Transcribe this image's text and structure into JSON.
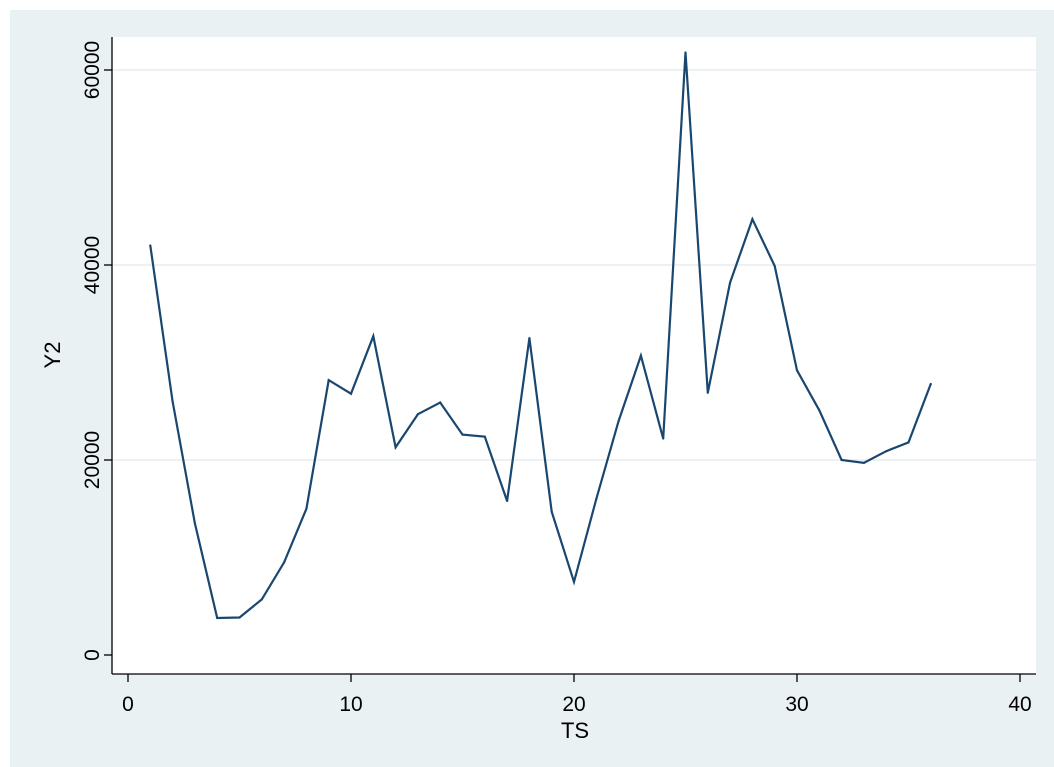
{
  "chart_data": {
    "type": "line",
    "xlabel": "TS",
    "ylabel": "Y2",
    "xlim": [
      0,
      40
    ],
    "ylim": [
      0,
      60000
    ],
    "xticks": [
      0,
      10,
      20,
      30,
      40
    ],
    "yticks": [
      0,
      20000,
      40000,
      60000
    ],
    "xtick_labels": [
      "0",
      "10",
      "20",
      "30",
      "40"
    ],
    "ytick_labels": [
      "0",
      "20000",
      "40000",
      "60000"
    ],
    "grid": "horizontal",
    "background": "#eaf1f3",
    "plot_background": "#ffffff",
    "line_color": "#1a476f",
    "series": [
      {
        "x": [
          1,
          2,
          3,
          4,
          5,
          6,
          7,
          8,
          9,
          10,
          11,
          12,
          13,
          14,
          15,
          16,
          17,
          18,
          19,
          20,
          21,
          22,
          23,
          24,
          25,
          26,
          27,
          28,
          29,
          30,
          31,
          32,
          33,
          34,
          35,
          36
        ],
        "values": [
          42000,
          26000,
          13500,
          3800,
          3850,
          5700,
          9500,
          15000,
          28200,
          26800,
          32700,
          21300,
          24700,
          25900,
          22600,
          22400,
          15800,
          32500,
          14700,
          7500,
          16000,
          24000,
          30700,
          22200,
          61800,
          26900,
          38200,
          44700,
          39900,
          29200,
          25100,
          20000,
          19700,
          20900,
          21800,
          27800
        ]
      }
    ]
  }
}
